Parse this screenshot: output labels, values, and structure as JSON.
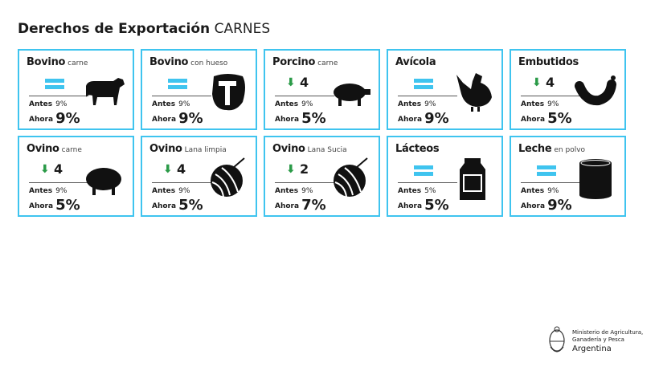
{
  "header": {
    "title": "Derechos de Exportación",
    "subtitle": "CARNES"
  },
  "labels": {
    "antes": "Antes",
    "ahora": "Ahora"
  },
  "colors": {
    "border": "#3fc4ef",
    "equal": "#3fc4ef",
    "down": "#2a9a47"
  },
  "cards": [
    {
      "name": "Bovino",
      "qualifier": "carne",
      "change": "equal",
      "delta": "",
      "antes": "9%",
      "ahora": "9%",
      "icon": "cow-icon"
    },
    {
      "name": "Bovino",
      "qualifier": "con hueso",
      "change": "equal",
      "delta": "",
      "antes": "9%",
      "ahora": "9%",
      "icon": "t-bone-steak-icon"
    },
    {
      "name": "Porcino",
      "qualifier": "carne",
      "change": "down",
      "delta": "4",
      "antes": "9%",
      "ahora": "5%",
      "icon": "pig-icon"
    },
    {
      "name": "Avícola",
      "qualifier": "",
      "change": "equal",
      "delta": "",
      "antes": "9%",
      "ahora": "9%",
      "icon": "chicken-icon"
    },
    {
      "name": "Embutidos",
      "qualifier": "",
      "change": "down",
      "delta": "4",
      "antes": "9%",
      "ahora": "5%",
      "icon": "sausage-icon"
    },
    {
      "name": "Ovino",
      "qualifier": "carne",
      "change": "down",
      "delta": "4",
      "antes": "9%",
      "ahora": "5%",
      "icon": "sheep-icon"
    },
    {
      "name": "Ovino",
      "qualifier": "Lana limpia",
      "change": "down",
      "delta": "4",
      "antes": "9%",
      "ahora": "5%",
      "icon": "wool-ball-icon"
    },
    {
      "name": "Ovino",
      "qualifier": "Lana Sucia",
      "change": "down",
      "delta": "2",
      "antes": "9%",
      "ahora": "7%",
      "icon": "wool-ball-icon"
    },
    {
      "name": "Lácteos",
      "qualifier": "",
      "change": "equal",
      "delta": "",
      "antes": "5%",
      "ahora": "5%",
      "icon": "milk-can-icon"
    },
    {
      "name": "Leche",
      "qualifier": "en polvo",
      "change": "equal",
      "delta": "",
      "antes": "9%",
      "ahora": "9%",
      "icon": "powdered-milk-can-icon"
    }
  ],
  "footer": {
    "ministry_line1": "Ministerio de Agricultura,",
    "ministry_line2": "Ganadería y Pesca",
    "country": "Argentina",
    "logo": "argentina-coat-of-arms"
  }
}
